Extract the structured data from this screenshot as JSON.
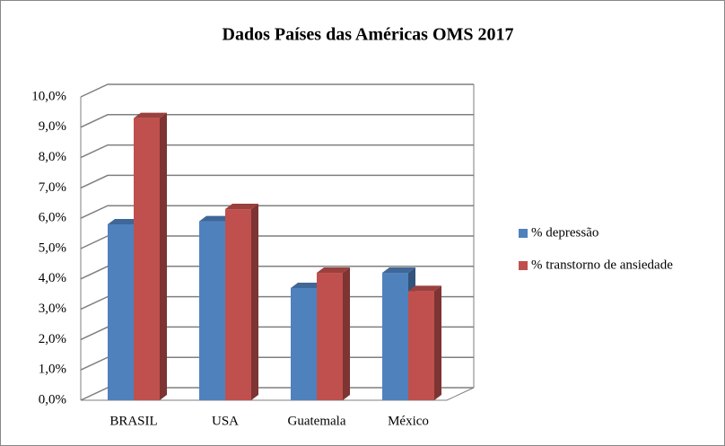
{
  "chart_data": {
    "type": "bar3d",
    "title": "Dados Países das Américas OMS 2017",
    "categories": [
      "BRASIL",
      "USA",
      "Guatemala",
      "México"
    ],
    "series": [
      {
        "name": "% depressão",
        "color": "#4f81bd",
        "values": [
          5.8,
          5.9,
          3.7,
          4.2
        ]
      },
      {
        "name": "% transtorno de ansiedade",
        "color": "#c0504d",
        "values": [
          9.3,
          6.3,
          4.2,
          3.6
        ]
      }
    ],
    "ylim": [
      0,
      10
    ],
    "yticks": [
      {
        "value": 0,
        "label": "0,0%"
      },
      {
        "value": 1,
        "label": "1,0%"
      },
      {
        "value": 2,
        "label": "2,0%"
      },
      {
        "value": 3,
        "label": "3,0%"
      },
      {
        "value": 4,
        "label": "4,0%"
      },
      {
        "value": 5,
        "label": "5,0%"
      },
      {
        "value": 6,
        "label": "6,0%"
      },
      {
        "value": 7,
        "label": "7,0%"
      },
      {
        "value": 8,
        "label": "8,0%"
      },
      {
        "value": 9,
        "label": "9,0%"
      },
      {
        "value": 10,
        "label": "10,0%"
      }
    ],
    "grid": true,
    "legend": "right"
  }
}
